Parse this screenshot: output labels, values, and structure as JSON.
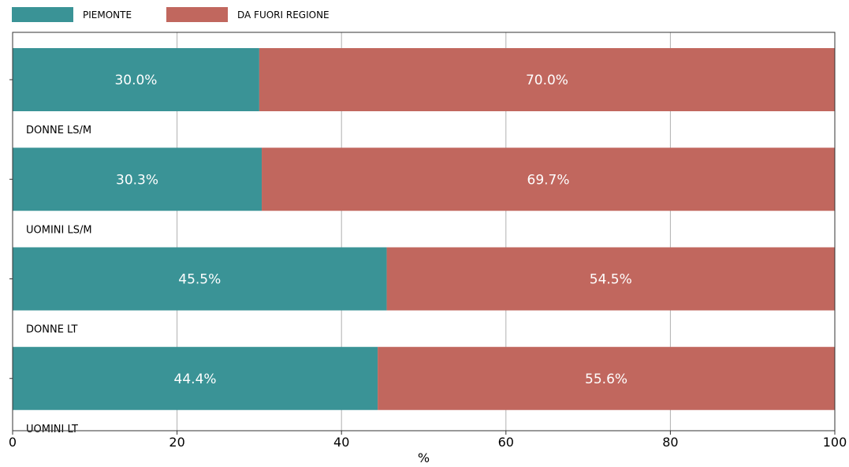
{
  "chart_data": {
    "type": "bar",
    "orientation": "horizontal",
    "stacked": true,
    "categories": [
      "DONNE LS/M",
      "UOMINI LS/M",
      "DONNE LT",
      "UOMINI LT"
    ],
    "series": [
      {
        "name": "PIEMONTE",
        "color": "#3a9396",
        "values": [
          30.0,
          30.3,
          45.5,
          44.4
        ],
        "labels": [
          "30.0%",
          "30.3%",
          "45.5%",
          "44.4%"
        ]
      },
      {
        "name": "DA FUORI REGIONE",
        "color": "#c1675e",
        "values": [
          70.0,
          69.7,
          54.5,
          55.6
        ],
        "labels": [
          "70.0%",
          "69.7%",
          "54.5%",
          "55.6%"
        ]
      }
    ],
    "xlabel": "%",
    "xlim": [
      0,
      100
    ],
    "xticks": [
      0,
      20,
      40,
      60,
      80,
      100
    ],
    "xtick_labels": [
      "0",
      "20",
      "40",
      "60",
      "80",
      "100"
    ],
    "grid": "vertical",
    "legend": "top-left"
  }
}
